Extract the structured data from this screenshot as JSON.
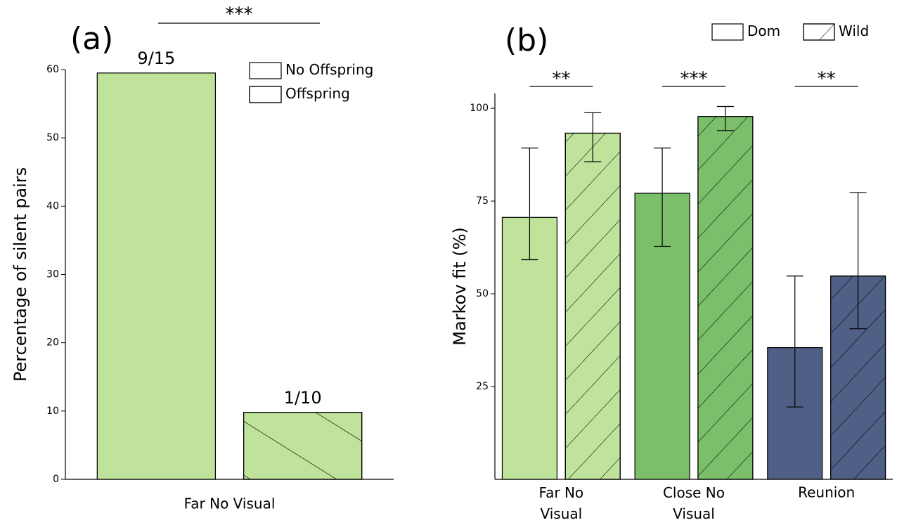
{
  "chart_data": [
    {
      "type": "bar",
      "title": "(a)",
      "y_label": "Percentage of silent pairs",
      "categories": [
        "Far No Visual"
      ],
      "series": [
        {
          "name": "No Offspring",
          "color": "#c0e39b",
          "hatch": "none",
          "values": [
            59.5
          ],
          "count_labels": [
            "9/15"
          ]
        },
        {
          "name": "Offspring",
          "color": "#c0e39b",
          "hatch": "backslash",
          "values": [
            9.8
          ],
          "count_labels": [
            "1/10"
          ]
        }
      ],
      "ylim": [
        0,
        60
      ],
      "yticks": [
        0,
        10,
        20,
        30,
        40,
        50,
        60
      ],
      "significance": [
        "***"
      ],
      "legend": "upper right"
    },
    {
      "type": "bar",
      "title": "(b)",
      "y_label": "Markov fit (%)",
      "categories": [
        "Far No Visual",
        "Close No Visual",
        "Reunion"
      ],
      "series": [
        {
          "name": "Dom",
          "hatch": "none",
          "colors": [
            "#c0e39b",
            "#7bbf6a",
            "#505f85"
          ],
          "values": [
            70.6,
            77.1,
            35.5
          ],
          "err_low": [
            59.2,
            62.8,
            19.5
          ],
          "err_high": [
            89.3,
            89.3,
            54.8
          ]
        },
        {
          "name": "Wild",
          "hatch": "slash",
          "colors": [
            "#c0e39b",
            "#7bbf6a",
            "#505f85"
          ],
          "values": [
            93.3,
            97.8,
            54.8
          ],
          "err_low": [
            85.6,
            94.0,
            40.6
          ],
          "err_high": [
            98.8,
            100.5,
            77.3
          ]
        }
      ],
      "ylim": [
        0,
        104
      ],
      "yticks": [
        25,
        50,
        75,
        100
      ],
      "significance": [
        "**",
        "***",
        "**"
      ],
      "legend": "top right"
    }
  ]
}
